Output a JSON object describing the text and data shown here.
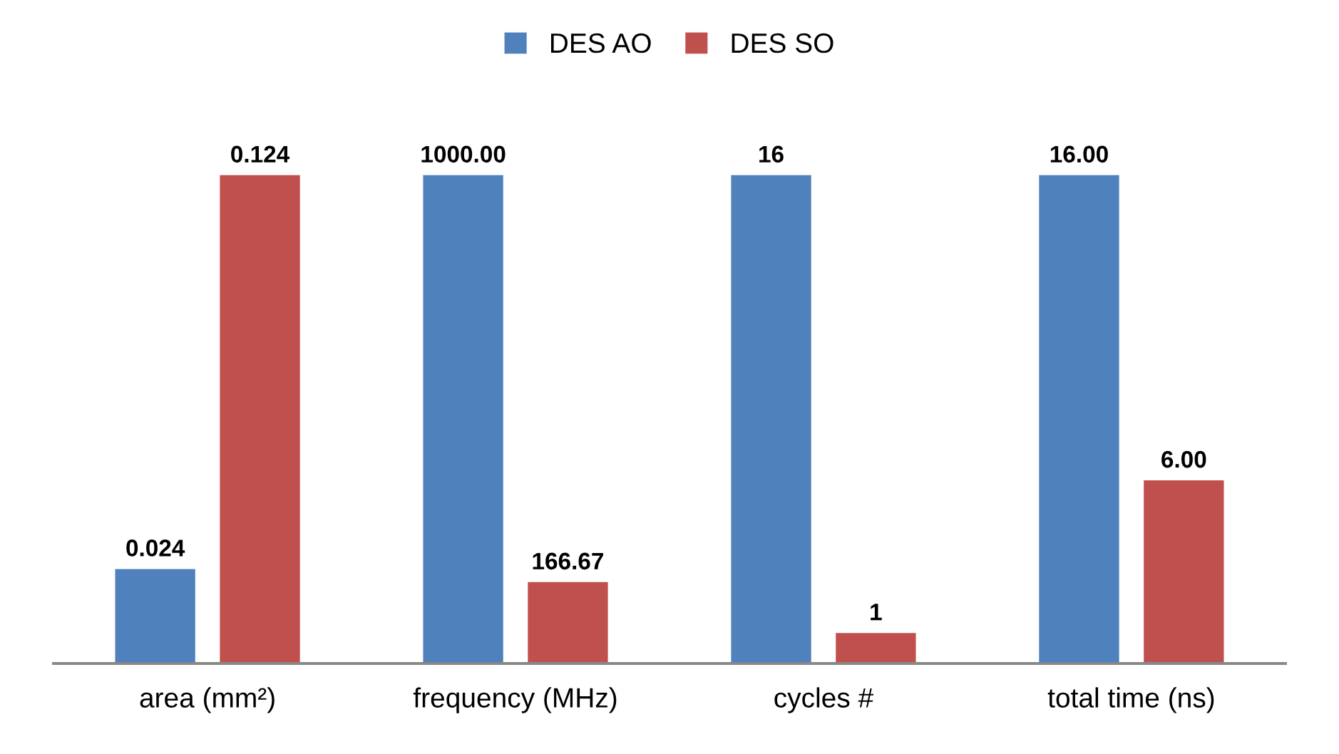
{
  "chart_data": [
    {
      "type": "bar",
      "categories": [
        "area (mm²)"
      ],
      "series": [
        {
          "name": "DES AO",
          "color": "#4f81bd",
          "values": [
            0.024
          ],
          "value_labels": [
            "0.024"
          ]
        },
        {
          "name": "DES SO",
          "color": "#c0504d",
          "values": [
            0.124
          ],
          "value_labels": [
            "0.124"
          ]
        }
      ],
      "tick_labels": "x",
      "legend": "top"
    },
    {
      "type": "bar",
      "categories": [
        "frequency (MHz)"
      ],
      "series": [
        {
          "color": "#4f81bd",
          "values": [
            1000
          ],
          "value_labels": [
            "1000.00"
          ]
        },
        {
          "color": "#c0504d",
          "values": [
            166.67
          ],
          "value_labels": [
            "166.67"
          ]
        }
      ],
      "tick_labels": "x"
    },
    {
      "type": "bar",
      "categories": [
        "cycles #"
      ],
      "series": [
        {
          "color": "#4f81bd",
          "values": [
            16
          ],
          "value_labels": [
            "16"
          ]
        },
        {
          "color": "#c0504d",
          "values": [
            1
          ],
          "value_labels": [
            "1"
          ]
        }
      ],
      "tick_labels": "x"
    },
    {
      "type": "bar",
      "categories": [
        "total time (ns)"
      ],
      "series": [
        {
          "color": "#4f81bd",
          "values": [
            16
          ],
          "value_labels": [
            "16.00"
          ]
        },
        {
          "color": "#c0504d",
          "values": [
            6
          ],
          "value_labels": [
            "6.00"
          ]
        }
      ],
      "tick_labels": "x"
    }
  ]
}
